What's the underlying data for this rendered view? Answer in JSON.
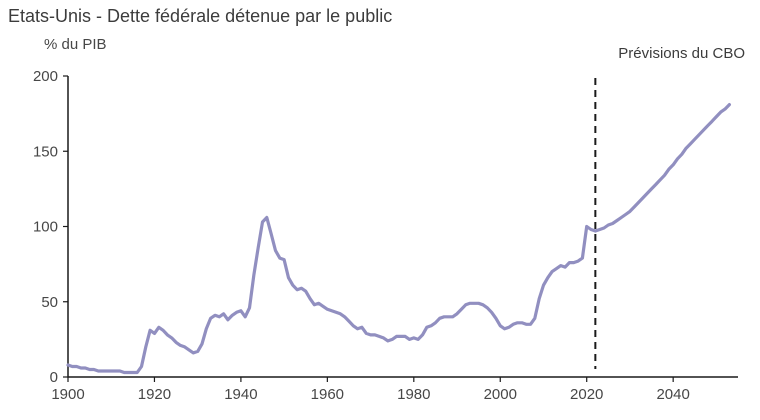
{
  "chart_data": {
    "type": "line",
    "title": "Etats-Unis - Dette fédérale détenue par le public",
    "ylabel": "% du PIB",
    "annotation": "Prévisions du CBO",
    "forecast_divider_year": 2022,
    "x_ticks": [
      1900,
      1920,
      1940,
      1960,
      1980,
      2000,
      2020,
      2040
    ],
    "y_ticks": [
      0,
      50,
      100,
      150,
      200
    ],
    "xlim": [
      1900,
      2055
    ],
    "ylim": [
      0,
      200
    ],
    "line_color": "#918fc0",
    "axis_color": "#1a1a1a",
    "series": [
      {
        "name": "Dette fédérale détenue par le public (% du PIB)",
        "x_start": 1900,
        "x_step": 1,
        "values": [
          8,
          7,
          7,
          6,
          6,
          5,
          5,
          4,
          4,
          4,
          4,
          4,
          4,
          3,
          3,
          3,
          3,
          7,
          20,
          31,
          29,
          33,
          31,
          28,
          26,
          23,
          21,
          20,
          18,
          16,
          17,
          22,
          32,
          39,
          41,
          40,
          42,
          38,
          41,
          43,
          44,
          40,
          46,
          68,
          86,
          103,
          106,
          95,
          84,
          79,
          78,
          66,
          61,
          58,
          59,
          57,
          52,
          48,
          49,
          47,
          45,
          44,
          43,
          42,
          40,
          37,
          34,
          32,
          33,
          29,
          28,
          28,
          27,
          26,
          24,
          25,
          27,
          27,
          27,
          25,
          26,
          25,
          28,
          33,
          34,
          36,
          39,
          40,
          40,
          40,
          42,
          45,
          48,
          49,
          49,
          49,
          48,
          46,
          43,
          39,
          34,
          32,
          33,
          35,
          36,
          36,
          35,
          35,
          39,
          52,
          61,
          66,
          70,
          72,
          74,
          73,
          76,
          76,
          77,
          79,
          100,
          98,
          97,
          98,
          99,
          101,
          102,
          104,
          106,
          108,
          110,
          113,
          116,
          119,
          122,
          125,
          128,
          131,
          134,
          138,
          141,
          145,
          148,
          152,
          155,
          158,
          161,
          164,
          167,
          170,
          173,
          176,
          178,
          181
        ]
      }
    ]
  }
}
